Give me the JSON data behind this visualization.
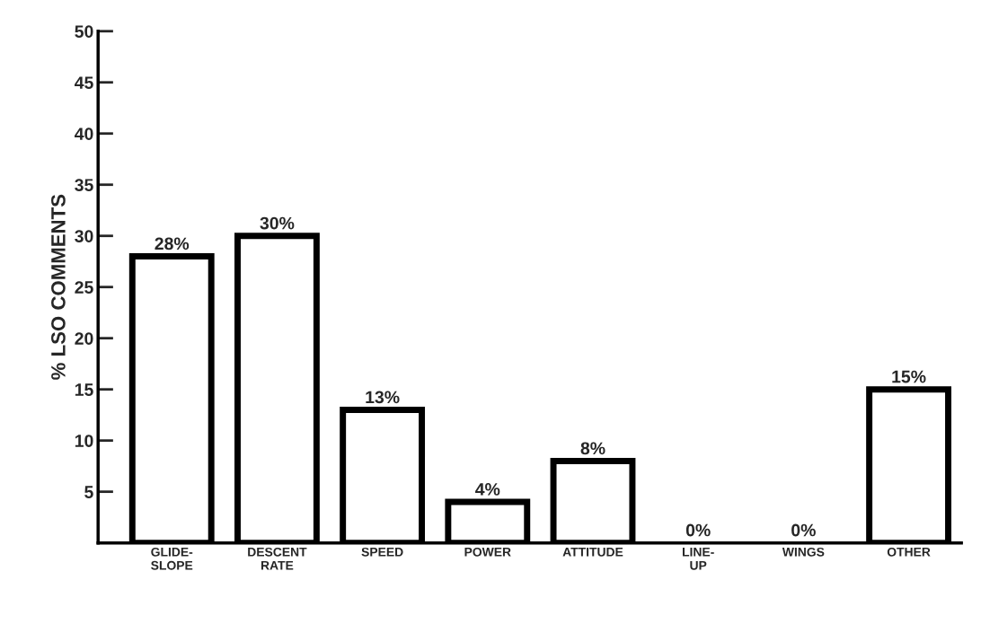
{
  "chart_data": {
    "type": "bar",
    "ylabel": "% LSO COMMENTS",
    "categories": [
      "GLIDE-\nSLOPE",
      "DESCENT\nRATE",
      "SPEED",
      "POWER",
      "ATTITUDE",
      "LINE-\nUP",
      "WINGS",
      "OTHER"
    ],
    "values": [
      28,
      30,
      13,
      4,
      8,
      0,
      0,
      15
    ],
    "value_labels": [
      "28%",
      "30%",
      "13%",
      "4%",
      "8%",
      "0%",
      "0%",
      "15%"
    ],
    "color": "#ffffff",
    "ylim": [
      0,
      50
    ],
    "yticks": [
      5,
      10,
      15,
      20,
      25,
      30,
      35,
      40,
      45,
      50
    ],
    "grid": false
  }
}
